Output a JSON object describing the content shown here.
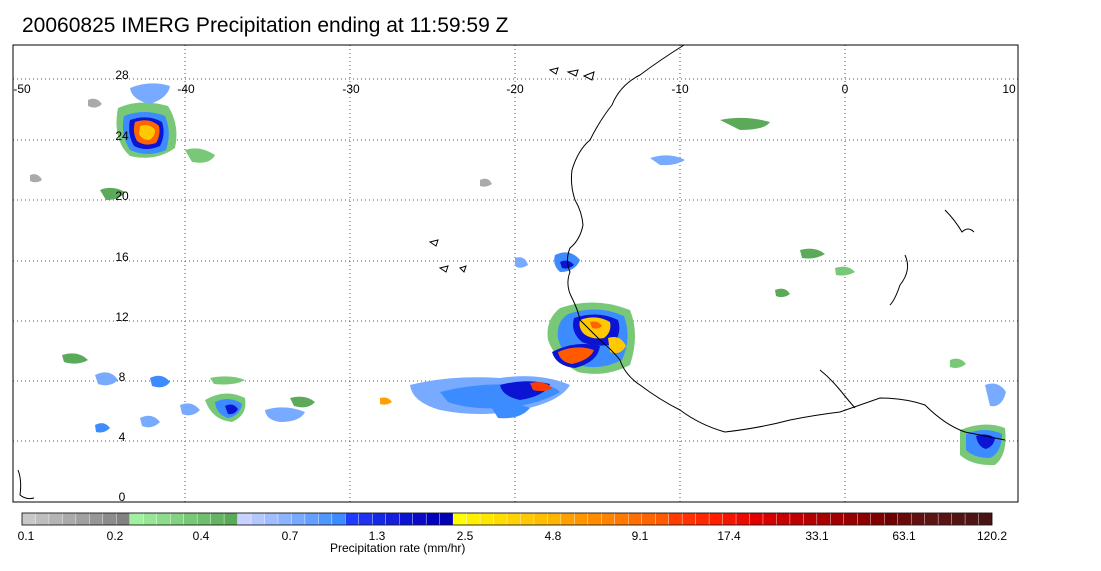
{
  "title": "20060825 IMERG Precipitation ending at 11:59:59 Z",
  "map": {
    "lon_range": [
      -50,
      10
    ],
    "lat_range": [
      -0.5,
      29.5
    ],
    "lon_ticks": [
      "-50",
      "-40",
      "-30",
      "-20",
      "-10",
      "0",
      "10"
    ],
    "lat_ticks": [
      "0",
      "4",
      "8",
      "12",
      "16",
      "20",
      "24",
      "28"
    ],
    "grid": true
  },
  "colorbar": {
    "label": "Precipitation rate (mm/hr)",
    "tick_labels": [
      "0.1",
      "0.2",
      "0.4",
      "0.7",
      "1.3",
      "2.5",
      "4.8",
      "9.1",
      "17.4",
      "33.1",
      "63.1",
      "120.2"
    ],
    "colors": [
      "#c8c8c8",
      "#bebebe",
      "#b4b4b4",
      "#aaaaaa",
      "#a0a0a0",
      "#969696",
      "#8c8c8c",
      "#828282",
      "#a0f0a0",
      "#96e696",
      "#8cdc8c",
      "#82d282",
      "#78c878",
      "#6ebe6e",
      "#64b464",
      "#5aaa5a",
      "#c8d2ff",
      "#b4c8ff",
      "#a0beff",
      "#8cb4ff",
      "#78aaff",
      "#64a0ff",
      "#5096ff",
      "#3c8cff",
      "#1e3cff",
      "#1e32f0",
      "#1428e6",
      "#141edc",
      "#0a14d2",
      "#0a0ac8",
      "#0000be",
      "#0000b4",
      "#ffff00",
      "#fff000",
      "#ffe600",
      "#ffdc00",
      "#ffd200",
      "#ffc800",
      "#ffbe00",
      "#ffb400",
      "#ffa000",
      "#ff9600",
      "#ff8c00",
      "#ff8200",
      "#ff7800",
      "#ff6e00",
      "#ff6400",
      "#ff5a00",
      "#ff3c00",
      "#ff3200",
      "#ff2800",
      "#ff1e00",
      "#f51400",
      "#eb0a00",
      "#e10000",
      "#d70000",
      "#c80000",
      "#be0000",
      "#b40000",
      "#aa0000",
      "#a00000",
      "#960000",
      "#8c0000",
      "#820000",
      "#6e0000",
      "#680a0a",
      "#640f0f",
      "#5f1414",
      "#5a1414",
      "#551414",
      "#501414",
      "#4b1414"
    ]
  }
}
